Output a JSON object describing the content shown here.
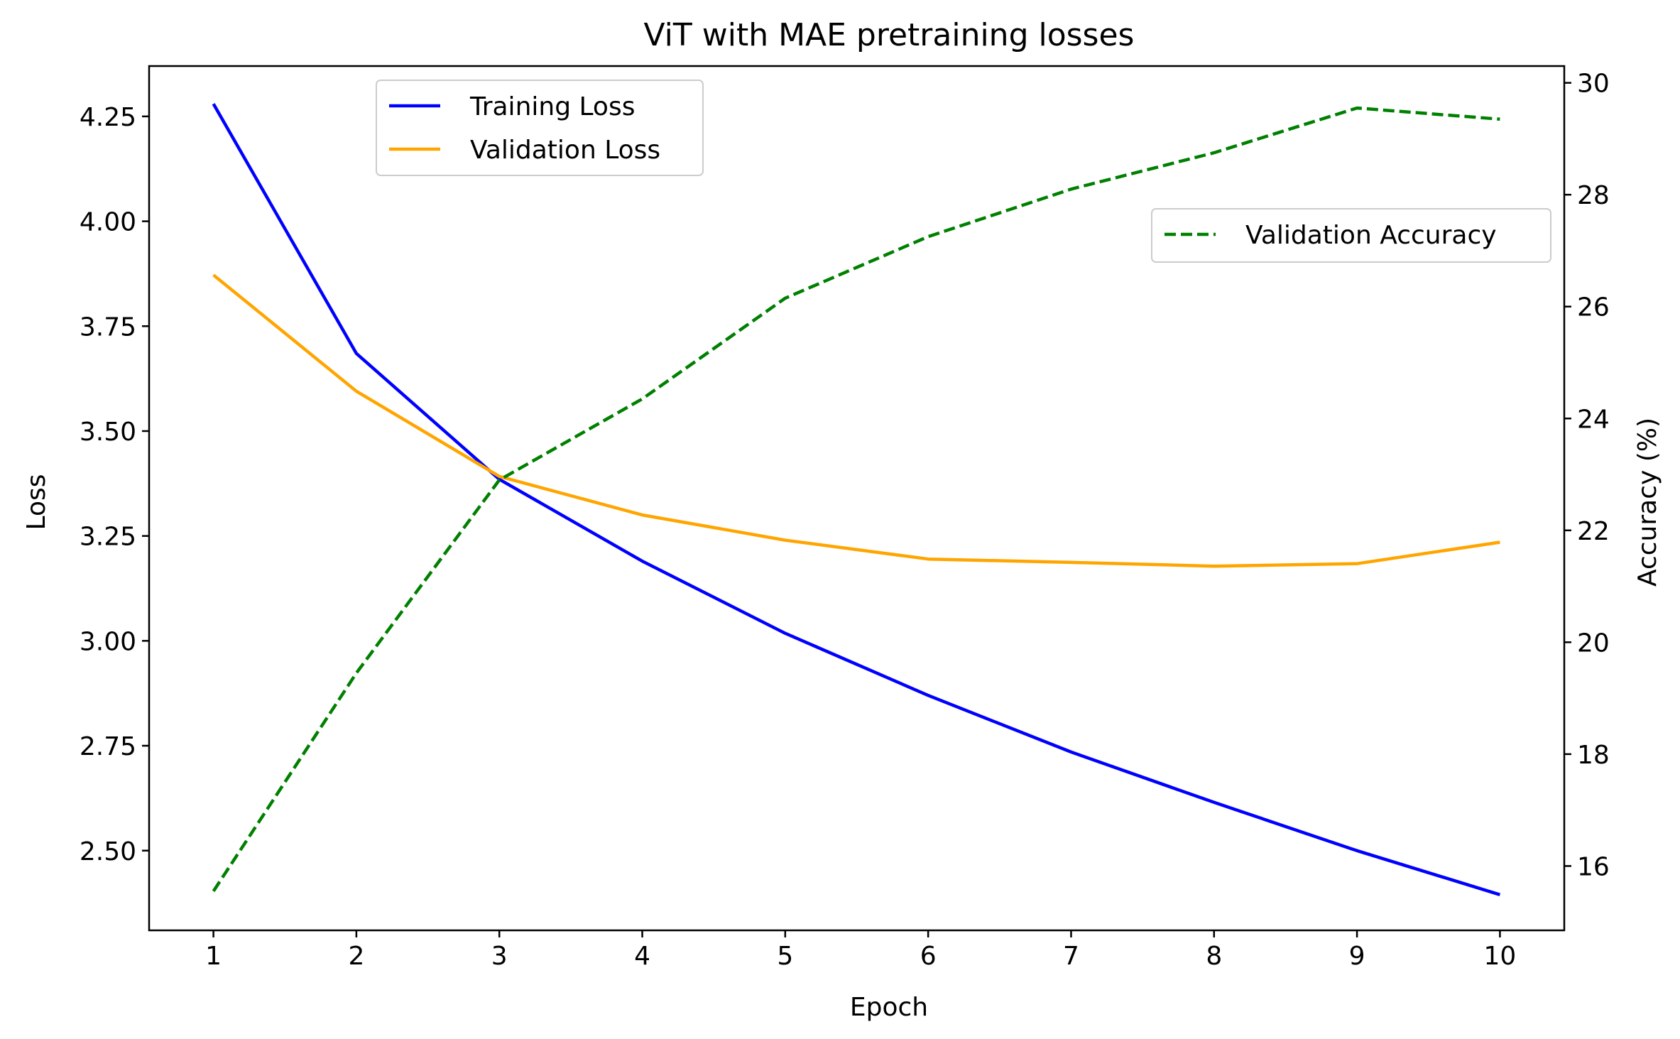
{
  "chart_data": {
    "type": "line",
    "title": "ViT with MAE pretraining losses",
    "xlabel": "Epoch",
    "ylabel": "Loss",
    "y2label": "Accuracy (%)",
    "x": [
      1,
      2,
      3,
      4,
      5,
      6,
      7,
      8,
      9,
      10
    ],
    "x_ticks": [
      "1",
      "2",
      "3",
      "4",
      "5",
      "6",
      "7",
      "8",
      "9",
      "10"
    ],
    "xlim": [
      0.55,
      10.45
    ],
    "ylim": [
      2.31,
      4.37
    ],
    "y_ticks": [
      "2.50",
      "2.75",
      "3.00",
      "3.25",
      "3.50",
      "3.75",
      "4.00",
      "4.25"
    ],
    "y2lim": [
      14.85,
      30.3
    ],
    "y2_ticks": [
      "16",
      "18",
      "20",
      "22",
      "24",
      "26",
      "28",
      "30"
    ],
    "grid": false,
    "series": [
      {
        "name": "Training Loss",
        "axis": "left",
        "color": "#0000ff",
        "style": "solid",
        "values": [
          4.28,
          3.685,
          3.385,
          3.19,
          3.018,
          2.87,
          2.735,
          2.615,
          2.5,
          2.395
        ]
      },
      {
        "name": "Validation Loss",
        "axis": "left",
        "color": "#ffa500",
        "style": "solid",
        "values": [
          3.872,
          3.595,
          3.392,
          3.3,
          3.24,
          3.195,
          3.187,
          3.178,
          3.184,
          3.235
        ]
      },
      {
        "name": "Validation Accuracy",
        "axis": "right",
        "color": "#008000",
        "style": "dashed",
        "values": [
          15.55,
          19.45,
          22.9,
          24.35,
          26.15,
          27.25,
          28.1,
          28.75,
          29.55,
          29.35
        ]
      }
    ],
    "legends": [
      {
        "placement": "upper-left",
        "entries": [
          "Training Loss",
          "Validation Loss"
        ]
      },
      {
        "placement": "upper-right",
        "entries": [
          "Validation Accuracy"
        ]
      }
    ]
  }
}
